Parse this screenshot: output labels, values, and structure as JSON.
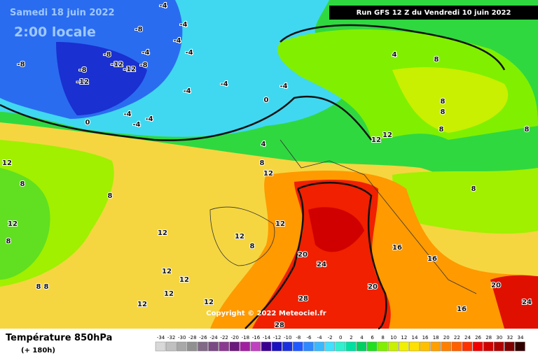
{
  "header": {
    "date": "Samedi 18 juin 2022",
    "time": "2:00 locale",
    "run": "Run GFS 12 Z du Vendredi 10 juin 2022"
  },
  "copyright": "Copyright © 2022 Meteociel.fr",
  "footer": {
    "title": "Température 850hPa",
    "subtitle": "(+ 180h)"
  },
  "colorbar": {
    "ticks": [
      -34,
      -32,
      -30,
      -28,
      -26,
      -24,
      -22,
      -20,
      -18,
      -16,
      -14,
      -12,
      -10,
      -8,
      -6,
      -4,
      -2,
      0,
      2,
      4,
      6,
      8,
      10,
      12,
      14,
      16,
      18,
      20,
      22,
      24,
      26,
      28,
      30,
      32,
      34
    ],
    "colors": [
      "#d8d8d8",
      "#c0c0c0",
      "#a8a8a8",
      "#909090",
      "#806a86",
      "#7a4a84",
      "#8a3a90",
      "#6a1a7a",
      "#a020a0",
      "#c040c0",
      "#3a0090",
      "#1a10c0",
      "#1a30e0",
      "#2058ff",
      "#2e88ff",
      "#3ab8ff",
      "#40e0ff",
      "#30f0d0",
      "#00e0a0",
      "#00d060",
      "#20e020",
      "#80f000",
      "#c8f000",
      "#f0f000",
      "#ffe000",
      "#ffc000",
      "#ffa000",
      "#ff8000",
      "#ff6000",
      "#ff3000",
      "#f00000",
      "#d00000",
      "#b00000",
      "#800000",
      "#300000"
    ]
  },
  "contour_labels": [
    -8,
    -8,
    -12,
    -12,
    -12,
    -8,
    -8,
    -4,
    -4,
    -4,
    -4,
    -4,
    -8,
    -4,
    -4,
    -4,
    0,
    0,
    -4,
    -4,
    -4,
    4,
    8,
    12,
    12,
    8,
    8,
    12,
    12,
    8,
    12,
    20,
    24,
    28,
    28,
    20,
    16,
    16,
    20,
    24,
    16,
    12,
    12,
    8,
    4,
    8,
    8,
    8,
    8,
    8,
    12,
    12,
    12,
    12,
    12,
    8,
    8,
    12,
    8
  ]
}
